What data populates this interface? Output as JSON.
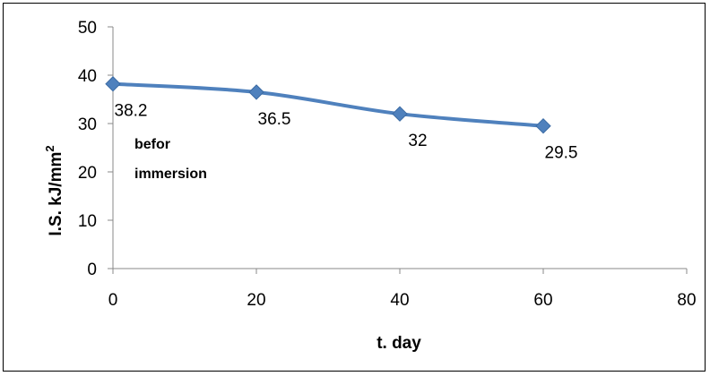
{
  "chart_data": {
    "type": "line",
    "title": "",
    "xlabel": "t. day",
    "ylabel": "I.S. kJ/mm",
    "ylabel_superscript": "2",
    "xlim": [
      0,
      80
    ],
    "ylim": [
      0,
      50
    ],
    "xticks": [
      "0",
      "20",
      "40",
      "60",
      "80"
    ],
    "yticks": [
      "0",
      "10",
      "20",
      "30",
      "40",
      "50"
    ],
    "grid": false,
    "legend": "none",
    "series": [
      {
        "color": "#4f81bd",
        "marker": "diamond",
        "x": [
          0,
          20,
          40,
          60
        ],
        "y": [
          38.2,
          36.5,
          32,
          29.5
        ],
        "data_labels": [
          "38.2",
          "36.5",
          "32",
          "29.5"
        ]
      }
    ],
    "annotation": {
      "line1": "befor",
      "line2": "immersion"
    }
  }
}
